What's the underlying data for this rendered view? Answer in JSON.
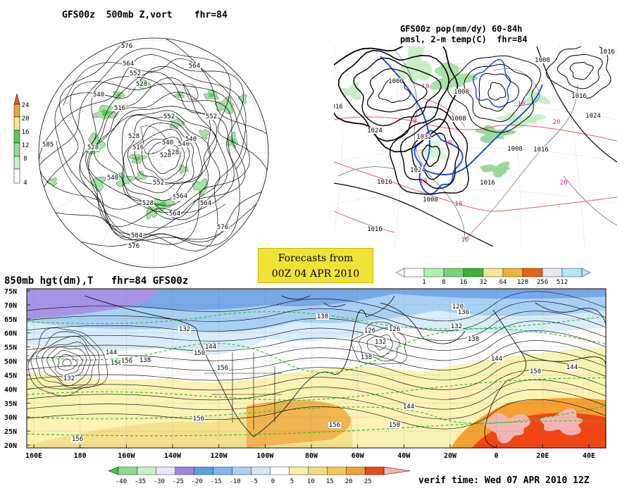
{
  "panel_500mb": {
    "title": "GFS00z  500mb Z,vort    fhr=84",
    "colorbar_ticks": [
      "24",
      "20",
      "16",
      "12",
      "8",
      "4"
    ],
    "contour_labels": [
      "576",
      "564",
      "552",
      "528",
      "540",
      "516",
      "552",
      "528",
      "540",
      "564",
      "576",
      "528",
      "516",
      "540",
      "552",
      "528",
      "516",
      "528",
      "564",
      "552",
      "540",
      "540",
      "584",
      "576",
      "564",
      "576",
      "585",
      "564",
      "528"
    ]
  },
  "panel_pop": {
    "title": "GFS00z pop(mm/dy) 60-84h\npmsl, 2-m temp(C)  fhr=84",
    "isobar_labels": [
      "1016",
      "1008",
      "1000",
      "1008",
      "1016",
      "1032",
      "1024",
      "1016",
      "1024",
      "1008",
      "1016",
      "1024",
      "1016",
      "1008",
      "1016",
      "1016",
      "1008"
    ],
    "temp_labels": [
      "10",
      "10",
      "10",
      "20",
      "10",
      "10",
      "20",
      "10",
      "10"
    ],
    "colorbar_ticks": [
      "1",
      "8",
      "16",
      "32",
      "64",
      "128",
      "256",
      "512"
    ],
    "colorbar_colors": [
      "#ffffff",
      "#b4f0b4",
      "#78d278",
      "#3cb43c",
      "#f5e68c",
      "#f0b43c",
      "#e66414",
      "#e6e6f0",
      "#b4e6f5"
    ]
  },
  "forecast_box": {
    "line1": "Forecasts from",
    "line2": "00Z 04 APR 2010"
  },
  "panel_850mb": {
    "title": "850mb hgt(dm),T   fhr=84 GFS00z",
    "lat_labels": [
      "75N",
      "70N",
      "65N",
      "60N",
      "55N",
      "50N",
      "45N",
      "40N",
      "35N",
      "30N",
      "25N",
      "20N"
    ],
    "lon_labels": [
      "160E",
      "180",
      "160W",
      "140W",
      "120W",
      "100W",
      "80W",
      "60W",
      "40W",
      "20W",
      "0",
      "20E",
      "40E"
    ],
    "height_labels": [
      "132",
      "144",
      "150",
      "138",
      "132",
      "144",
      "150",
      "156",
      "138",
      "126",
      "120",
      "136",
      "132",
      "138",
      "144",
      "150",
      "144",
      "156",
      "150",
      "156",
      "156",
      "156",
      "138",
      "144",
      "132",
      "126"
    ],
    "colorbar_ticks": [
      "-40",
      "-35",
      "-30",
      "-25",
      "-20",
      "-15",
      "-10",
      "-5",
      "0",
      "5",
      "10",
      "15",
      "20",
      "25"
    ],
    "colorbar_colors": [
      "#3cc83c",
      "#8cdc8c",
      "#c8f0c8",
      "#e6e6f5",
      "#9b82e6",
      "#5aa0e6",
      "#82b4f0",
      "#aad2f5",
      "#d2e6fa",
      "#ffffff",
      "#faf0a0",
      "#f5dc78",
      "#f0c85a",
      "#f5a032",
      "#f04614",
      "#f5b4b4"
    ]
  },
  "verif_time": "verif time: Wed 07 APR 2010 12Z"
}
